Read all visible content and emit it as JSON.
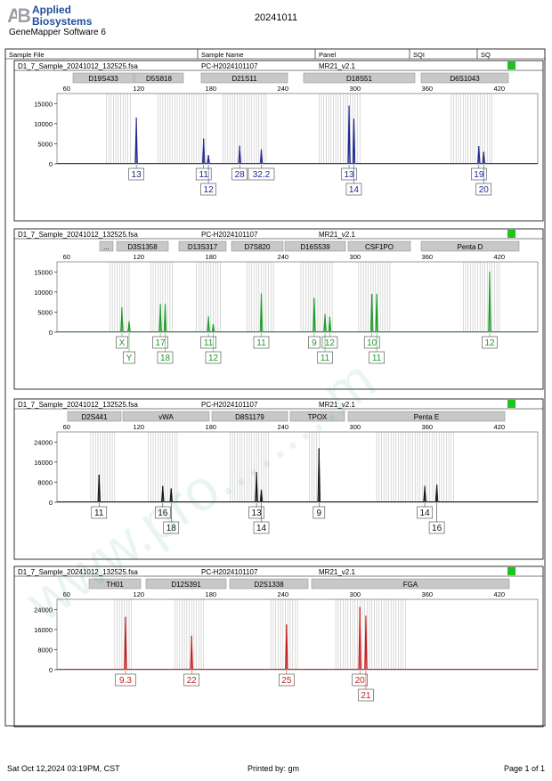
{
  "header": {
    "logo_mark": "A|B",
    "logo_line1": "Applied",
    "logo_line2": "Biosystems",
    "software": "GeneMapper Software 6",
    "date": "20241011"
  },
  "table_header": {
    "sample_file": "Sample File",
    "sample_name": "Sample Name",
    "panel": "Panel",
    "sqi": "SQI",
    "sq": "SQ"
  },
  "colors": {
    "blue": "#1f2a8c",
    "green": "#1f9a2a",
    "black": "#111111",
    "red": "#c41e1e",
    "sq_indicator": "#22c022",
    "bin_gray": "#c9c9c9",
    "marker_fill": "#c8c8c8"
  },
  "watermark": "www.pro.........m",
  "chart_data": [
    {
      "type": "line",
      "dye": "blue",
      "sample_file": "D1_7_Sample_20241012_132525.fsa",
      "sample_name": "PC-H2024101107",
      "panel": "MR21_v2.1",
      "sq": "pass",
      "x_ticks": [
        60,
        120,
        180,
        240,
        300,
        360,
        420
      ],
      "y_ticks": [
        0,
        5000,
        10000,
        15000
      ],
      "xlim": [
        52,
        452
      ],
      "ylim": [
        0,
        17500
      ],
      "markers": [
        {
          "name": "D19S433"
        },
        {
          "name": "D5S818"
        },
        {
          "name": "D21S11"
        },
        {
          "name": "D18S51"
        },
        {
          "name": "D6S1043"
        }
      ],
      "peaks": [
        {
          "x": 118.0,
          "y": 11500
        },
        {
          "x": 174.0,
          "y": 6300
        },
        {
          "x": 178.0,
          "y": 2200
        },
        {
          "x": 204.0,
          "y": 4500
        },
        {
          "x": 222.0,
          "y": 3600
        },
        {
          "x": 295.0,
          "y": 14500
        },
        {
          "x": 299.0,
          "y": 11200
        },
        {
          "x": 403.0,
          "y": 4400
        },
        {
          "x": 407.0,
          "y": 3000
        }
      ],
      "alleles_row1": [
        {
          "label": "13",
          "x": 118.0
        },
        {
          "label": "11",
          "x": 174.0
        },
        {
          "label": "28",
          "x": 204.0
        },
        {
          "label": "32.2",
          "x": 222.0
        },
        {
          "label": "13",
          "x": 295.0
        },
        {
          "label": "19",
          "x": 403.0
        }
      ],
      "alleles_row2": [
        {
          "label": "12",
          "x": 178.0
        },
        {
          "label": "14",
          "x": 299.0
        },
        {
          "label": "20",
          "x": 407.0
        }
      ]
    },
    {
      "type": "line",
      "dye": "green",
      "sample_file": "D1_7_Sample_20241012_132525.fsa",
      "sample_name": "PC-H2024101107",
      "panel": "MR21_v2.1",
      "sq": "pass",
      "x_ticks": [
        60,
        120,
        180,
        240,
        300,
        360,
        420
      ],
      "y_ticks": [
        0,
        5000,
        10000,
        15000
      ],
      "xlim": [
        52,
        452
      ],
      "ylim": [
        0,
        17500
      ],
      "markers": [
        {
          "name": "..."
        },
        {
          "name": "D3S1358"
        },
        {
          "name": "D13S317"
        },
        {
          "name": "D7S820"
        },
        {
          "name": "D16S539"
        },
        {
          "name": "CSF1PO"
        },
        {
          "name": "Penta D"
        }
      ],
      "peaks": [
        {
          "x": 106.0,
          "y": 6200
        },
        {
          "x": 112.0,
          "y": 2700
        },
        {
          "x": 138.0,
          "y": 7000
        },
        {
          "x": 142.0,
          "y": 7000
        },
        {
          "x": 178.0,
          "y": 3900
        },
        {
          "x": 182.0,
          "y": 2000
        },
        {
          "x": 222.0,
          "y": 9600
        },
        {
          "x": 266.0,
          "y": 8500
        },
        {
          "x": 275.0,
          "y": 4500
        },
        {
          "x": 279.0,
          "y": 3800
        },
        {
          "x": 314.0,
          "y": 9500
        },
        {
          "x": 318.0,
          "y": 9500
        },
        {
          "x": 412.0,
          "y": 15000
        }
      ],
      "alleles_row1": [
        {
          "label": "X",
          "x": 106.0
        },
        {
          "label": "17",
          "x": 138.0
        },
        {
          "label": "11",
          "x": 178.0
        },
        {
          "label": "11",
          "x": 222.0
        },
        {
          "label": "9",
          "x": 266.0
        },
        {
          "label": "12",
          "x": 279.0
        },
        {
          "label": "10",
          "x": 314.0
        },
        {
          "label": "12",
          "x": 412.0
        }
      ],
      "alleles_row2": [
        {
          "label": "Y",
          "x": 112.0
        },
        {
          "label": "18",
          "x": 142.0
        },
        {
          "label": "12",
          "x": 182.0
        },
        {
          "label": "11",
          "x": 275.0
        },
        {
          "label": "11",
          "x": 318.0
        }
      ]
    },
    {
      "type": "line",
      "dye": "black",
      "sample_file": "D1_7_Sample_20241012_132525.fsa",
      "sample_name": "PC-H2024101107",
      "panel": "MR21_v2.1",
      "sq": "pass",
      "x_ticks": [
        60,
        120,
        180,
        240,
        300,
        360,
        420
      ],
      "y_ticks": [
        0,
        8000,
        16000,
        24000
      ],
      "xlim": [
        52,
        452
      ],
      "ylim": [
        0,
        28000
      ],
      "markers": [
        {
          "name": "D2S441"
        },
        {
          "name": "vWA"
        },
        {
          "name": "D8S1179"
        },
        {
          "name": "TPOX"
        },
        {
          "name": "Penta E"
        }
      ],
      "peaks": [
        {
          "x": 87.0,
          "y": 11000
        },
        {
          "x": 140.0,
          "y": 6500
        },
        {
          "x": 147.0,
          "y": 5500
        },
        {
          "x": 218.0,
          "y": 12000
        },
        {
          "x": 222.0,
          "y": 5000
        },
        {
          "x": 270.0,
          "y": 21500
        },
        {
          "x": 358.0,
          "y": 6500
        },
        {
          "x": 368.0,
          "y": 7000
        }
      ],
      "alleles_row1": [
        {
          "label": "11",
          "x": 87.0
        },
        {
          "label": "16",
          "x": 140.0
        },
        {
          "label": "13",
          "x": 218.0
        },
        {
          "label": "9",
          "x": 270.0
        },
        {
          "label": "14",
          "x": 358.0
        }
      ],
      "alleles_row2": [
        {
          "label": "18",
          "x": 147.0
        },
        {
          "label": "14",
          "x": 222.0
        },
        {
          "label": "16",
          "x": 368.0
        }
      ]
    },
    {
      "type": "line",
      "dye": "red",
      "sample_file": "D1_7_Sample_20241012_132525.fsa",
      "sample_name": "PC-H2024101107",
      "panel": "MR21_v2.1",
      "sq": "pass",
      "x_ticks": [
        60,
        120,
        180,
        240,
        300,
        360,
        420
      ],
      "y_ticks": [
        0,
        8000,
        16000,
        24000
      ],
      "xlim": [
        52,
        452
      ],
      "ylim": [
        0,
        28000
      ],
      "markers": [
        {
          "name": "TH01"
        },
        {
          "name": "D12S391"
        },
        {
          "name": "D2S1338"
        },
        {
          "name": "FGA"
        }
      ],
      "peaks": [
        {
          "x": 109.0,
          "y": 21000
        },
        {
          "x": 164.0,
          "y": 13500
        },
        {
          "x": 243.0,
          "y": 18000
        },
        {
          "x": 304.0,
          "y": 25000
        },
        {
          "x": 309.0,
          "y": 21500
        }
      ],
      "alleles_row1": [
        {
          "label": "9.3",
          "x": 109.0
        },
        {
          "label": "22",
          "x": 164.0
        },
        {
          "label": "25",
          "x": 243.0
        },
        {
          "label": "20",
          "x": 304.0
        }
      ],
      "alleles_row2": [
        {
          "label": "21",
          "x": 309.0
        }
      ]
    }
  ],
  "footer": {
    "printed_at": "Sat Oct 12,2024 03:19PM, CST",
    "printed_by": "Printed by: gm",
    "page": "Page 1 of 1"
  }
}
